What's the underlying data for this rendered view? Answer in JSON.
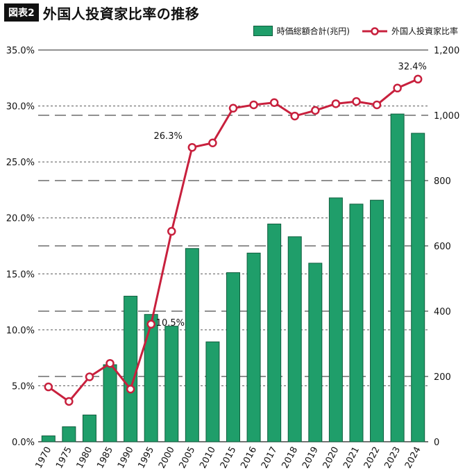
{
  "header": {
    "badge": "図表2",
    "title": "外国人投資家比率の推移"
  },
  "legend": {
    "bar_label": "時価総額合計(兆円)",
    "line_label": "外国人投資家比率"
  },
  "colors": {
    "bar_fill": "#1f9e6a",
    "bar_stroke": "#0f5d3d",
    "line": "#c8203d",
    "text": "#111111"
  },
  "chart_data": {
    "type": "bar",
    "categories": [
      "1970",
      "1975",
      "1980",
      "1985",
      "1990",
      "1995",
      "2000",
      "2005",
      "2010",
      "2015",
      "2016",
      "2017",
      "2018",
      "2019",
      "2020",
      "2021",
      "2022",
      "2023",
      "2024"
    ],
    "series": [
      {
        "name": "時価総額合計(兆円)",
        "type": "bar",
        "axis": "right",
        "values": [
          18,
          46,
          82,
          236,
          446,
          390,
          354,
          592,
          306,
          518,
          578,
          667,
          628,
          547,
          747,
          728,
          740,
          1004,
          945
        ]
      },
      {
        "name": "外国人投資家比率",
        "type": "line",
        "axis": "left",
        "values": [
          4.9,
          3.6,
          5.8,
          7.0,
          4.7,
          10.5,
          18.8,
          26.3,
          26.7,
          29.8,
          30.1,
          30.3,
          29.1,
          29.6,
          30.2,
          30.4,
          30.1,
          31.6,
          32.4
        ]
      }
    ],
    "annotations": [
      {
        "category": "1995",
        "text": "10.5%"
      },
      {
        "category": "2005",
        "text": "26.3%"
      },
      {
        "category": "2024",
        "text": "32.4%"
      }
    ],
    "left_axis": {
      "min": 0,
      "max": 35,
      "ticks": [
        "0.0%",
        "5.0%",
        "10.0%",
        "15.0%",
        "20.0%",
        "25.0%",
        "30.0%",
        "35.0%"
      ],
      "tick_values": [
        0,
        5,
        10,
        15,
        20,
        25,
        30,
        35
      ]
    },
    "right_axis": {
      "min": 0,
      "max": 1200,
      "ticks": [
        "0",
        "200",
        "400",
        "600",
        "800",
        "1,000",
        "1,200"
      ],
      "tick_values": [
        0,
        200,
        400,
        600,
        800,
        1000,
        1200
      ]
    },
    "grid": true
  }
}
